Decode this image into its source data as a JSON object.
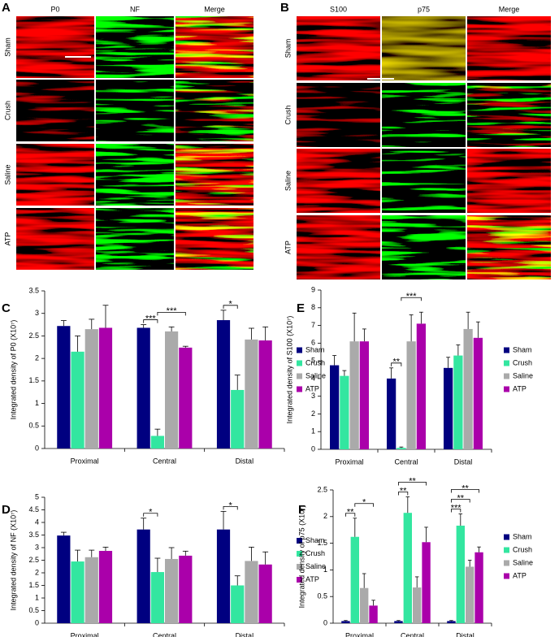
{
  "panels": [
    {
      "letter": "A",
      "columns": [
        "P0",
        "NF",
        "Merge"
      ],
      "rows": [
        "Sham",
        "Crush",
        "Saline",
        "ATP"
      ]
    },
    {
      "letter": "B",
      "columns": [
        "S100",
        "p75",
        "Merge"
      ],
      "rows": [
        "Sham",
        "Crush",
        "Saline",
        "ATP"
      ]
    }
  ],
  "chart_data": [
    {
      "type": "bar",
      "letter": "C",
      "ylabel": "Integrated density of P0 (X10⁷)",
      "categories": [
        "Proximal",
        "Central",
        "Distal"
      ],
      "ylim": [
        0,
        3.5
      ],
      "yticks": [
        0,
        0.5,
        1,
        1.5,
        2,
        2.5,
        3,
        3.5
      ],
      "legend": "right",
      "series": [
        {
          "name": "Sham",
          "color": "#000080",
          "values": [
            2.72,
            2.68,
            2.85
          ],
          "errors": [
            0.12,
            0.07,
            0.22
          ]
        },
        {
          "name": "Crush",
          "color": "#33e6a0",
          "values": [
            2.15,
            0.28,
            1.3
          ],
          "errors": [
            0.35,
            0.15,
            0.33
          ]
        },
        {
          "name": "Saline",
          "color": "#aaaaaa",
          "values": [
            2.65,
            2.6,
            2.42
          ],
          "errors": [
            0.22,
            0.1,
            0.25
          ]
        },
        {
          "name": "ATP",
          "color": "#aa00aa",
          "values": [
            2.68,
            2.24,
            2.4
          ],
          "errors": [
            0.5,
            0.03,
            0.3
          ]
        }
      ],
      "annotations": [
        {
          "text": "***",
          "category": "Central",
          "between": [
            "Sham",
            "Crush"
          ]
        },
        {
          "text": "***",
          "category": "Central",
          "between": [
            "Crush",
            "ATP"
          ]
        },
        {
          "text": "*",
          "category": "Distal",
          "between": [
            "Sham",
            "Crush"
          ]
        }
      ]
    },
    {
      "type": "bar",
      "letter": "E",
      "ylabel": "Integrated density of S100 (X10⁷)",
      "categories": [
        "Proximal",
        "Central",
        "Distal"
      ],
      "ylim": [
        0,
        9
      ],
      "yticks": [
        0,
        1,
        2,
        3,
        4,
        5,
        6,
        7,
        8,
        9
      ],
      "legend": "right",
      "series": [
        {
          "name": "Sham",
          "color": "#000080",
          "values": [
            4.75,
            4.0,
            4.6
          ],
          "errors": [
            0.55,
            0.6,
            0.6
          ]
        },
        {
          "name": "Crush",
          "color": "#33e6a0",
          "values": [
            4.15,
            0.08,
            5.3
          ],
          "errors": [
            0.3,
            0.05,
            0.6
          ]
        },
        {
          "name": "Saline",
          "color": "#aaaaaa",
          "values": [
            6.1,
            6.1,
            6.8
          ],
          "errors": [
            1.6,
            1.5,
            0.95
          ]
        },
        {
          "name": "ATP",
          "color": "#aa00aa",
          "values": [
            6.1,
            7.1,
            6.3
          ],
          "errors": [
            0.7,
            0.65,
            0.9
          ]
        }
      ],
      "annotations": [
        {
          "text": "**",
          "category": "Central",
          "between": [
            "Sham",
            "Crush"
          ]
        },
        {
          "text": "***",
          "category": "Central",
          "between": [
            "Crush",
            "ATP"
          ]
        }
      ]
    },
    {
      "type": "bar",
      "letter": "D",
      "ylabel": "Integrated density of NF (X10⁷)",
      "categories": [
        "Proximal",
        "Central",
        "Distal"
      ],
      "ylim": [
        0,
        5
      ],
      "yticks": [
        0,
        0.5,
        1,
        1.5,
        2,
        2.5,
        3,
        3.5,
        4,
        4.5,
        5
      ],
      "legend": "right",
      "series": [
        {
          "name": "Sham",
          "color": "#000080",
          "values": [
            3.48,
            3.72,
            3.72
          ],
          "errors": [
            0.13,
            0.45,
            0.72
          ]
        },
        {
          "name": "Crush",
          "color": "#33e6a0",
          "values": [
            2.45,
            2.03,
            1.5
          ],
          "errors": [
            0.45,
            0.55,
            0.38
          ]
        },
        {
          "name": "Saline",
          "color": "#aaaaaa",
          "values": [
            2.62,
            2.55,
            2.47
          ],
          "errors": [
            0.28,
            0.45,
            0.55
          ]
        },
        {
          "name": "ATP",
          "color": "#aa00aa",
          "values": [
            2.87,
            2.68,
            2.33
          ],
          "errors": [
            0.15,
            0.18,
            0.5
          ]
        }
      ],
      "annotations": [
        {
          "text": "*",
          "category": "Central",
          "between": [
            "Sham",
            "Crush"
          ]
        },
        {
          "text": "*",
          "category": "Distal",
          "between": [
            "Sham",
            "Crush"
          ]
        }
      ]
    },
    {
      "type": "bar",
      "letter": "F",
      "ylabel": "Integrated density of p75 (X10⁷)",
      "categories": [
        "Proximal",
        "Central",
        "Distal"
      ],
      "ylim": [
        0,
        2.5
      ],
      "yticks": [
        0,
        0.5,
        1,
        1.5,
        2,
        2.5
      ],
      "legend": "right",
      "series": [
        {
          "name": "Sham",
          "color": "#000080",
          "values": [
            0.04,
            0.04,
            0.04
          ],
          "errors": [
            0.01,
            0.01,
            0.01
          ]
        },
        {
          "name": "Crush",
          "color": "#33e6a0",
          "values": [
            1.62,
            2.07,
            1.83
          ],
          "errors": [
            0.35,
            0.3,
            0.22
          ]
        },
        {
          "name": "Saline",
          "color": "#aaaaaa",
          "values": [
            0.66,
            0.67,
            1.06
          ],
          "errors": [
            0.27,
            0.2,
            0.12
          ]
        },
        {
          "name": "ATP",
          "color": "#aa00aa",
          "values": [
            0.33,
            1.52,
            1.33
          ],
          "errors": [
            0.1,
            0.28,
            0.1
          ]
        }
      ],
      "annotations": [
        {
          "text": "**",
          "category": "Proximal",
          "between": [
            "Sham",
            "Crush"
          ]
        },
        {
          "text": "*",
          "category": "Proximal",
          "between": [
            "Crush",
            "ATP"
          ]
        },
        {
          "text": "**",
          "category": "Central",
          "between": [
            "Sham",
            "Crush"
          ]
        },
        {
          "text": "**",
          "category": "Central",
          "between": [
            "Sham",
            "ATP"
          ]
        },
        {
          "text": "***",
          "category": "Distal",
          "between": [
            "Sham",
            "Crush"
          ]
        },
        {
          "text": "**",
          "category": "Distal",
          "between": [
            "Sham",
            "Saline"
          ]
        },
        {
          "text": "**",
          "category": "Distal",
          "between": [
            "Sham",
            "ATP"
          ]
        }
      ]
    }
  ]
}
